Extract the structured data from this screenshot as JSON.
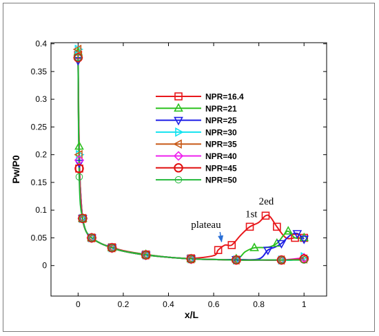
{
  "chart_data": {
    "type": "line",
    "xlabel": "x/L",
    "ylabel": "Pw/P0",
    "xlim": [
      -0.12,
      1.1
    ],
    "ylim": [
      -0.055,
      0.402
    ],
    "x_ticks": [
      "0",
      "0.2",
      "0.4",
      "0.6",
      "0.8",
      "1"
    ],
    "y_ticks": [
      "0",
      "0.05",
      "0.1",
      "0.15",
      "0.2",
      "0.25",
      "0.3",
      "0.35",
      "0.4"
    ],
    "x_tick_values": [
      0,
      0.2,
      0.4,
      0.6,
      0.8,
      1
    ],
    "y_tick_values": [
      0,
      0.05,
      0.1,
      0.15,
      0.2,
      0.25,
      0.3,
      0.35,
      0.4
    ],
    "grid": false,
    "legend_position": "upper-center",
    "series": [
      {
        "name": "NPR=16.4",
        "color": "#e8171b",
        "marker": "square",
        "x": [
          0.0,
          0.002,
          0.005,
          0.01,
          0.02,
          0.035,
          0.06,
          0.1,
          0.15,
          0.2,
          0.3,
          0.4,
          0.5,
          0.6,
          0.62,
          0.65,
          0.68,
          0.72,
          0.76,
          0.8,
          0.83,
          0.85,
          0.88,
          0.92,
          0.96,
          1.0
        ],
        "y": [
          0.38,
          0.26,
          0.175,
          0.12,
          0.085,
          0.062,
          0.05,
          0.04,
          0.033,
          0.027,
          0.02,
          0.015,
          0.013,
          0.018,
          0.028,
          0.037,
          0.037,
          0.055,
          0.07,
          0.078,
          0.09,
          0.088,
          0.07,
          0.05,
          0.05,
          0.05
        ]
      },
      {
        "name": "NPR=21",
        "color": "#2cc11f",
        "marker": "triangle-up",
        "x": [
          0.0,
          0.002,
          0.005,
          0.01,
          0.02,
          0.035,
          0.06,
          0.1,
          0.15,
          0.2,
          0.3,
          0.4,
          0.5,
          0.6,
          0.7,
          0.74,
          0.78,
          0.84,
          0.88,
          0.91,
          0.93,
          0.96,
          1.0
        ],
        "y": [
          0.385,
          0.3,
          0.215,
          0.14,
          0.085,
          0.062,
          0.05,
          0.04,
          0.032,
          0.026,
          0.02,
          0.015,
          0.012,
          0.011,
          0.012,
          0.025,
          0.032,
          0.033,
          0.04,
          0.055,
          0.062,
          0.05,
          0.05
        ]
      },
      {
        "name": "NPR=25",
        "color": "#1e1ee6",
        "marker": "triangle-down",
        "x": [
          0.0,
          0.002,
          0.005,
          0.01,
          0.02,
          0.035,
          0.06,
          0.1,
          0.15,
          0.2,
          0.3,
          0.4,
          0.5,
          0.6,
          0.7,
          0.8,
          0.84,
          0.87,
          0.9,
          0.94,
          0.97,
          1.0
        ],
        "y": [
          0.37,
          0.265,
          0.185,
          0.14,
          0.085,
          0.062,
          0.05,
          0.04,
          0.032,
          0.026,
          0.019,
          0.015,
          0.012,
          0.011,
          0.011,
          0.012,
          0.028,
          0.033,
          0.04,
          0.055,
          0.058,
          0.048
        ]
      },
      {
        "name": "NPR=30",
        "color": "#12e2ef",
        "marker": "triangle-right",
        "x": [
          0.0,
          0.002,
          0.005,
          0.01,
          0.02,
          0.035,
          0.06,
          0.1,
          0.15,
          0.2,
          0.3,
          0.4,
          0.5,
          0.6,
          0.7,
          0.8,
          0.9,
          0.95,
          1.0
        ],
        "y": [
          0.39,
          0.275,
          0.2,
          0.14,
          0.085,
          0.062,
          0.05,
          0.04,
          0.032,
          0.026,
          0.019,
          0.015,
          0.012,
          0.011,
          0.01,
          0.01,
          0.01,
          0.01,
          0.016
        ]
      },
      {
        "name": "NPR=35",
        "color": "#c85a18",
        "marker": "triangle-left",
        "x": [
          0.0,
          0.002,
          0.005,
          0.01,
          0.02,
          0.035,
          0.06,
          0.1,
          0.15,
          0.2,
          0.3,
          0.4,
          0.5,
          0.6,
          0.7,
          0.8,
          0.9,
          1.0
        ],
        "y": [
          0.39,
          0.28,
          0.2,
          0.14,
          0.085,
          0.062,
          0.05,
          0.04,
          0.032,
          0.026,
          0.019,
          0.015,
          0.012,
          0.011,
          0.01,
          0.01,
          0.01,
          0.012
        ]
      },
      {
        "name": "NPR=40",
        "color": "#ee22ee",
        "marker": "diamond",
        "x": [
          0.0,
          0.002,
          0.005,
          0.01,
          0.02,
          0.035,
          0.06,
          0.1,
          0.15,
          0.2,
          0.3,
          0.4,
          0.5,
          0.6,
          0.7,
          0.8,
          0.9,
          1.0
        ],
        "y": [
          0.375,
          0.27,
          0.19,
          0.13,
          0.085,
          0.062,
          0.05,
          0.04,
          0.032,
          0.026,
          0.019,
          0.015,
          0.012,
          0.011,
          0.01,
          0.01,
          0.01,
          0.014
        ]
      },
      {
        "name": "NPR=45",
        "color": "#e01010",
        "marker": "circle",
        "x": [
          0.0,
          0.002,
          0.005,
          0.01,
          0.02,
          0.035,
          0.06,
          0.1,
          0.15,
          0.2,
          0.3,
          0.4,
          0.5,
          0.6,
          0.7,
          0.8,
          0.9,
          1.0
        ],
        "y": [
          0.375,
          0.26,
          0.175,
          0.12,
          0.085,
          0.062,
          0.05,
          0.04,
          0.032,
          0.026,
          0.019,
          0.015,
          0.012,
          0.011,
          0.01,
          0.01,
          0.01,
          0.012
        ]
      },
      {
        "name": "NPR=50",
        "color": "#22b83a",
        "marker": "circle-dot",
        "x": [
          0.0,
          0.002,
          0.005,
          0.01,
          0.02,
          0.035,
          0.06,
          0.1,
          0.15,
          0.2,
          0.3,
          0.4,
          0.5,
          0.6,
          0.7,
          0.8,
          0.9,
          1.0
        ],
        "y": [
          0.375,
          0.24,
          0.16,
          0.11,
          0.085,
          0.062,
          0.05,
          0.04,
          0.032,
          0.026,
          0.019,
          0.015,
          0.012,
          0.011,
          0.01,
          0.01,
          0.01,
          0.01
        ]
      }
    ],
    "annotations": [
      {
        "text": "plateau",
        "x": 0.5,
        "y": 0.068,
        "arrow_to": {
          "x": 0.635,
          "y": 0.043
        },
        "arrow_color": "#2a6fd6"
      },
      {
        "text": "1st",
        "x": 0.74,
        "y": 0.087
      },
      {
        "text": "2ed",
        "x": 0.8,
        "y": 0.11
      }
    ]
  }
}
